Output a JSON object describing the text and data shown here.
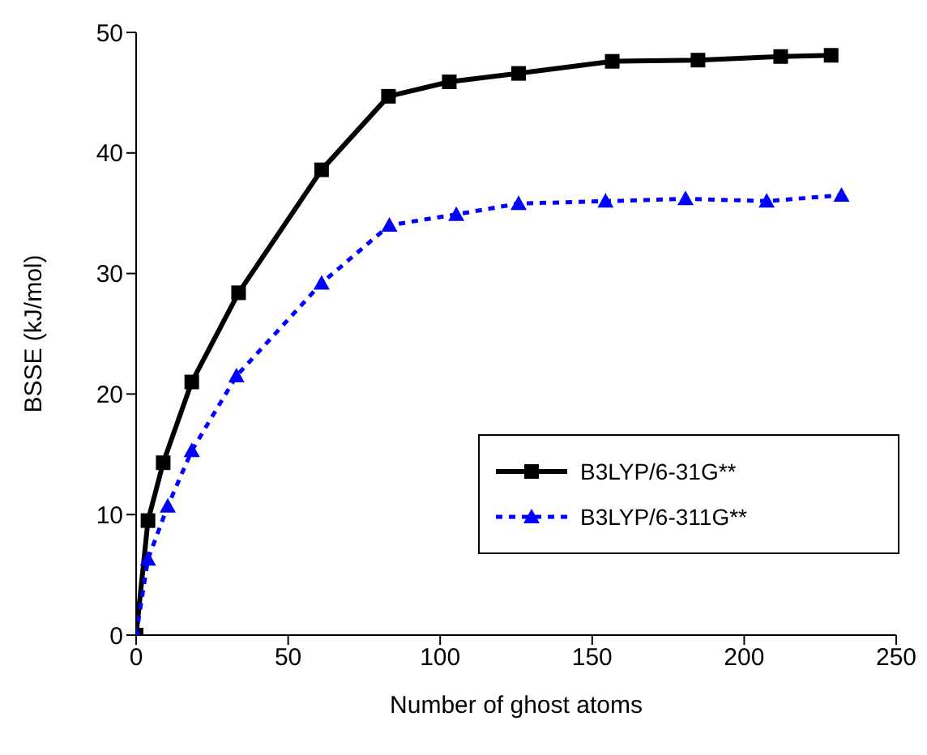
{
  "chart_data": {
    "type": "line",
    "xlabel": "Number of ghost atoms",
    "ylabel": "BSSE (kJ/mol)",
    "xlim": [
      0,
      250
    ],
    "xticks": [
      0,
      50,
      100,
      150,
      200,
      250
    ],
    "ylim": [
      0,
      50
    ],
    "yticks": [
      0,
      10,
      20,
      30,
      40,
      50
    ],
    "grid": false,
    "legend": "bottom right",
    "series": [
      {
        "name": "B3LYP/6-31G**",
        "color": "#000000",
        "marker": "square",
        "line_style": "solid",
        "x": [
          0,
          3.9,
          8.9,
          18.3,
          33.7,
          61,
          83,
          103,
          125.8,
          156.6,
          184.8,
          212,
          228.6
        ],
        "values": [
          0,
          9.5,
          14.3,
          21.0,
          28.4,
          38.6,
          44.7,
          45.9,
          46.6,
          47.6,
          47.7,
          48.0,
          48.1
        ]
      },
      {
        "name": "B3LYP/6-311G**",
        "color": "#0000ff",
        "marker": "triangle",
        "line_style": "dotted",
        "x": [
          0,
          3.9,
          10.4,
          18.3,
          33,
          61,
          83.3,
          105.3,
          125.8,
          154.4,
          180.7,
          207.4,
          232
        ],
        "values": [
          0,
          6.3,
          10.7,
          15.3,
          21.5,
          29.2,
          34.0,
          34.9,
          35.8,
          36.0,
          36.2,
          36.0,
          36.5
        ]
      }
    ]
  }
}
